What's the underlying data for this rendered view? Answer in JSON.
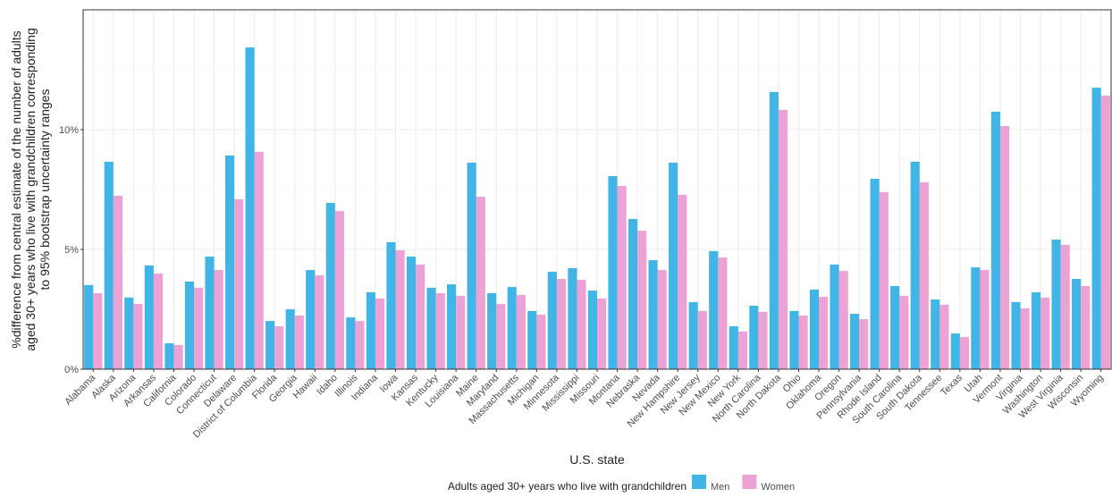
{
  "chart_data": {
    "type": "grouped-bar",
    "ylabel": [
      "%difference from central estimate of the number of adults",
      "aged 30+ years who live with grandchildren corresponding",
      "to 95% bootstrap uncertainty ranges"
    ],
    "xlabel": "U.S. state",
    "legend_title": "Adults aged 30+ years who live with grandchildren",
    "legend_position": "bottom",
    "grid": true,
    "categories": [
      "Alabama",
      "Alaska",
      "Arizona",
      "Arkansas",
      "California",
      "Colorado",
      "Connecticut",
      "Delaware",
      "District of Columbia",
      "Florida",
      "Georgia",
      "Hawaii",
      "Idaho",
      "Illinois",
      "Indiana",
      "Iowa",
      "Kansas",
      "Kentucky",
      "Louisiana",
      "Maine",
      "Maryland",
      "Massachusetts",
      "Michigan",
      "Minnesota",
      "Mississippi",
      "Missouri",
      "Montana",
      "Nebraska",
      "Nevada",
      "New Hampshire",
      "New Jersey",
      "New Mexico",
      "New York",
      "North Carolina",
      "North Dakota",
      "Ohio",
      "Oklahoma",
      "Oregon",
      "Pennsylvania",
      "Rhode Island",
      "South Carolina",
      "South Dakota",
      "Tennessee",
      "Texas",
      "Utah",
      "Vermont",
      "Virginia",
      "Washington",
      "West Virginia",
      "Wisconsin",
      "Wyoming"
    ],
    "series": [
      {
        "name": "Men",
        "color": "#41b6e6",
        "values": [
          3.51,
          8.66,
          2.99,
          4.33,
          1.08,
          3.66,
          4.7,
          8.92,
          13.43,
          2.01,
          2.5,
          4.14,
          6.94,
          2.16,
          3.21,
          5.3,
          4.7,
          3.4,
          3.54,
          8.62,
          3.17,
          3.43,
          2.43,
          4.07,
          4.22,
          3.28,
          8.06,
          6.27,
          4.55,
          8.62,
          2.8,
          4.93,
          1.79,
          2.65,
          11.57,
          2.43,
          3.32,
          4.37,
          2.31,
          7.95,
          3.47,
          8.66,
          2.91,
          1.49,
          4.25,
          10.75,
          2.8,
          3.21,
          5.41,
          3.77,
          11.75
        ]
      },
      {
        "name": "Women",
        "color": "#eda2d5",
        "values": [
          3.17,
          7.24,
          2.72,
          3.99,
          1.01,
          3.4,
          4.14,
          7.09,
          9.07,
          1.79,
          2.24,
          3.92,
          6.6,
          2.01,
          2.95,
          4.96,
          4.37,
          3.17,
          3.06,
          7.2,
          2.72,
          3.1,
          2.28,
          3.77,
          3.73,
          2.95,
          7.65,
          5.78,
          4.14,
          7.28,
          2.43,
          4.66,
          1.57,
          2.39,
          10.82,
          2.24,
          3.02,
          4.1,
          2.09,
          7.39,
          3.06,
          7.8,
          2.69,
          1.34,
          4.14,
          10.15,
          2.54,
          2.99,
          5.19,
          3.47,
          11.42
        ]
      }
    ],
    "ylim": [
      0,
      15
    ],
    "yticks": [
      {
        "value": 0,
        "label": "0%"
      },
      {
        "value": 5,
        "label": "5%"
      },
      {
        "value": 10,
        "label": "10%"
      }
    ],
    "minor_yticks": [
      2.5,
      7.5,
      12.5
    ]
  }
}
